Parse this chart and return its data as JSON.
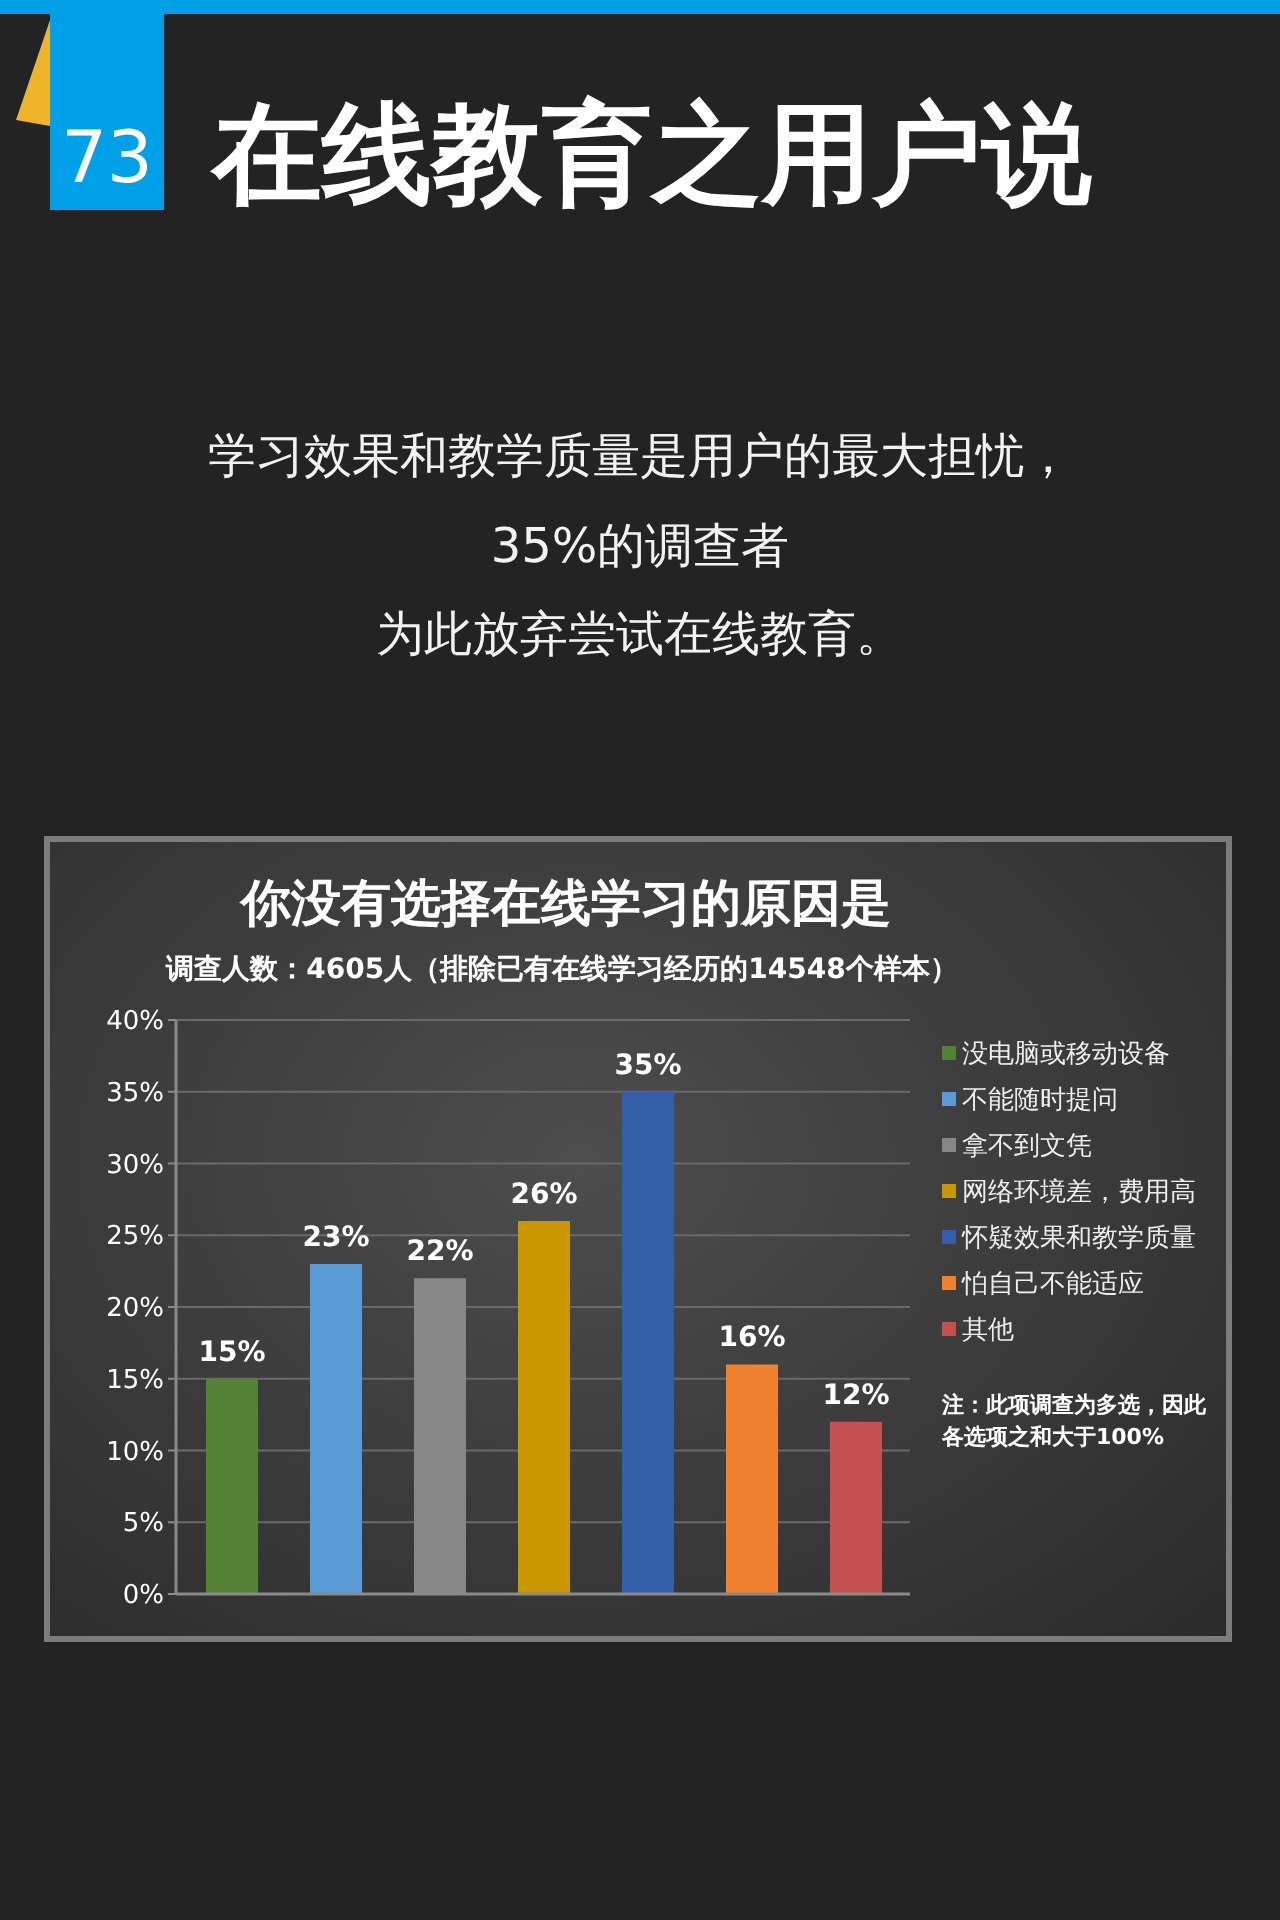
{
  "chart_data": {
    "type": "bar",
    "title": "你没有选择在线学习的原因是",
    "subtitle": "调查人数：4605人（排除已有在线学习经历的14548个样本）",
    "annotations": [
      "73",
      "在线教育之用户说",
      "学习效果和教学质量是用户的最大担忧，",
      "35%的调查者",
      "为此放弃尝试在线教育。",
      "注：此项调查为多选，因此各选项之和大于100%"
    ],
    "categories": [
      null
    ],
    "series": [
      {
        "name": "没电脑或移动设备",
        "color": "#538135",
        "values": [
          15
        ],
        "value_labels": [
          "15%"
        ]
      },
      {
        "name": "不能随时提问",
        "color": "#5b9bd5",
        "values": [
          23
        ],
        "value_labels": [
          "23%"
        ]
      },
      {
        "name": "拿不到文凭",
        "color": "#878787",
        "values": [
          22
        ],
        "value_labels": [
          "22%"
        ]
      },
      {
        "name": "网络环境差，费用高",
        "color": "#c99700",
        "values": [
          26
        ],
        "value_labels": [
          "26%"
        ]
      },
      {
        "name": "怀疑效果和教学质量",
        "color": "#335fa8",
        "values": [
          35
        ],
        "value_labels": [
          "35%"
        ]
      },
      {
        "name": "怕自己不能适应",
        "color": "#f0822f",
        "values": [
          16
        ],
        "value_labels": [
          "16%"
        ]
      },
      {
        "name": "其他",
        "color": "#c4504f",
        "values": [
          12
        ],
        "value_labels": [
          "12%"
        ]
      }
    ],
    "ylim": [
      0,
      40
    ],
    "yticks": [
      {
        "value": 0,
        "label": "0%"
      },
      {
        "value": 5,
        "label": "5%"
      },
      {
        "value": 10,
        "label": "10%"
      },
      {
        "value": 15,
        "label": "15%"
      },
      {
        "value": 20,
        "label": "20%"
      },
      {
        "value": 25,
        "label": "25%"
      },
      {
        "value": 30,
        "label": "30%"
      },
      {
        "value": 35,
        "label": "35%"
      },
      {
        "value": 40,
        "label": "40%"
      }
    ],
    "grid": "y",
    "legend": "right"
  }
}
